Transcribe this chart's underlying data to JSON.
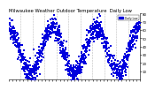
{
  "title": "Milwaukee Weather Outdoor Temperature  Daily Low",
  "background_color": "#ffffff",
  "plot_bg_color": "#ffffff",
  "dot_color": "#0000dd",
  "dot_size": 1.2,
  "legend_color": "#0000dd",
  "legend_label": "Daily Low",
  "ylim": [
    0,
    80
  ],
  "ytick_values": [
    10,
    20,
    30,
    40,
    50,
    60,
    70,
    80
  ],
  "vline_color": "#bbbbbb",
  "vline_style": "--",
  "title_fontsize": 3.8,
  "tick_fontsize": 2.8,
  "num_years": 3,
  "seed": 42
}
